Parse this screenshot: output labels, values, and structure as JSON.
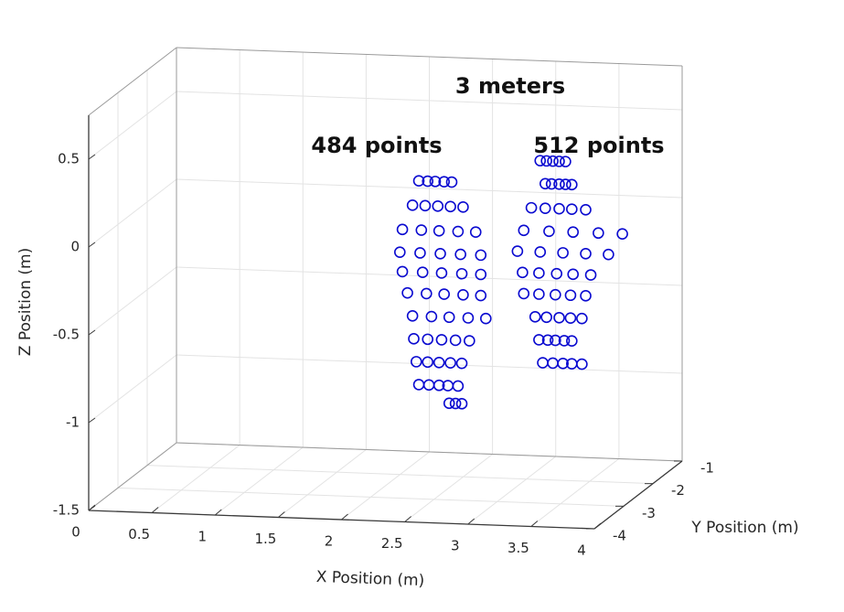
{
  "chart_data": {
    "type": "scatter3d",
    "annotations": [
      "3 meters",
      "484 points",
      "512 points"
    ],
    "xlabel": "X Position (m)",
    "ylabel": "Y Position (m)",
    "zlabel": "Z Position (m)",
    "xlim": [
      0,
      4
    ],
    "ylim": [
      -4,
      -1
    ],
    "zlim": [
      -1.5,
      0.75
    ],
    "xticks": [
      0,
      0.5,
      1,
      1.5,
      2,
      2.5,
      3,
      3.5,
      4
    ],
    "yticks": [
      -4,
      -3,
      -2,
      -1
    ],
    "zticks": [
      -1.5,
      -1,
      -0.5,
      0,
      0.5
    ],
    "grid": true,
    "series": [
      {
        "color": "#0a0ad0",
        "x": [
          2.38,
          2.45,
          2.51,
          2.58,
          2.64,
          2.33,
          2.43,
          2.53,
          2.63,
          2.73,
          2.25,
          2.4,
          2.54,
          2.69,
          2.83,
          2.23,
          2.39,
          2.55,
          2.71,
          2.87,
          2.25,
          2.41,
          2.56,
          2.72,
          2.87,
          2.29,
          2.44,
          2.58,
          2.73,
          2.87,
          2.33,
          2.48,
          2.62,
          2.77,
          2.91,
          2.34,
          2.45,
          2.56,
          2.67,
          2.78,
          2.36,
          2.45,
          2.54,
          2.63,
          2.72,
          2.38,
          2.46,
          2.54,
          2.61,
          2.69,
          2.62,
          2.67,
          2.72
        ],
        "y": [
          -3,
          -3,
          -3,
          -3,
          -3,
          -3,
          -3,
          -3,
          -3,
          -3,
          -3,
          -3,
          -3,
          -3,
          -3,
          -3,
          -3,
          -3,
          -3,
          -3,
          -3,
          -3,
          -3,
          -3,
          -3,
          -3,
          -3,
          -3,
          -3,
          -3,
          -3,
          -3,
          -3,
          -3,
          -3,
          -3,
          -3,
          -3,
          -3,
          -3,
          -3,
          -3,
          -3,
          -3,
          -3,
          -3,
          -3,
          -3,
          -3,
          -3,
          -3,
          -3,
          -3
        ],
        "z": [
          0.31,
          0.31,
          0.31,
          0.31,
          0.31,
          0.17,
          0.17,
          0.17,
          0.17,
          0.17,
          0.03,
          0.03,
          0.03,
          0.03,
          0.03,
          -0.1,
          -0.1,
          -0.1,
          -0.1,
          -0.1,
          -0.21,
          -0.21,
          -0.21,
          -0.21,
          -0.21,
          -0.33,
          -0.33,
          -0.33,
          -0.33,
          -0.33,
          -0.46,
          -0.46,
          -0.46,
          -0.46,
          -0.46,
          -0.59,
          -0.59,
          -0.59,
          -0.59,
          -0.59,
          -0.72,
          -0.72,
          -0.72,
          -0.72,
          -0.72,
          -0.85,
          -0.85,
          -0.85,
          -0.85,
          -0.85,
          -0.95,
          -0.95,
          -0.95
        ]
      },
      {
        "color": "#0a0ad0",
        "x": [
          3.34,
          3.39,
          3.44,
          3.49,
          3.54,
          3.38,
          3.43,
          3.49,
          3.54,
          3.59,
          3.27,
          3.38,
          3.49,
          3.59,
          3.7,
          3.21,
          3.41,
          3.6,
          3.8,
          3.99,
          3.16,
          3.34,
          3.52,
          3.7,
          3.88,
          3.2,
          3.33,
          3.47,
          3.6,
          3.74,
          3.21,
          3.33,
          3.46,
          3.58,
          3.7,
          3.3,
          3.39,
          3.49,
          3.58,
          3.67,
          3.33,
          3.4,
          3.46,
          3.53,
          3.59,
          3.36,
          3.44,
          3.52,
          3.59,
          3.67
        ],
        "y": [
          -3,
          -3,
          -3,
          -3,
          -3,
          -3,
          -3,
          -3,
          -3,
          -3,
          -3,
          -3,
          -3,
          -3,
          -3,
          -3,
          -3,
          -3,
          -3,
          -3,
          -3,
          -3,
          -3,
          -3,
          -3,
          -3,
          -3,
          -3,
          -3,
          -3,
          -3,
          -3,
          -3,
          -3,
          -3,
          -3,
          -3,
          -3,
          -3,
          -3,
          -3,
          -3,
          -3,
          -3,
          -3,
          -3,
          -3,
          -3,
          -3,
          -3
        ],
        "z": [
          0.45,
          0.45,
          0.45,
          0.45,
          0.45,
          0.32,
          0.32,
          0.32,
          0.32,
          0.32,
          0.18,
          0.18,
          0.18,
          0.18,
          0.18,
          0.05,
          0.05,
          0.05,
          0.05,
          0.05,
          -0.07,
          -0.07,
          -0.07,
          -0.07,
          -0.07,
          -0.19,
          -0.19,
          -0.19,
          -0.19,
          -0.19,
          -0.31,
          -0.31,
          -0.31,
          -0.31,
          -0.31,
          -0.44,
          -0.44,
          -0.44,
          -0.44,
          -0.44,
          -0.57,
          -0.57,
          -0.57,
          -0.57,
          -0.57,
          -0.7,
          -0.7,
          -0.7,
          -0.7,
          -0.7
        ]
      }
    ]
  }
}
